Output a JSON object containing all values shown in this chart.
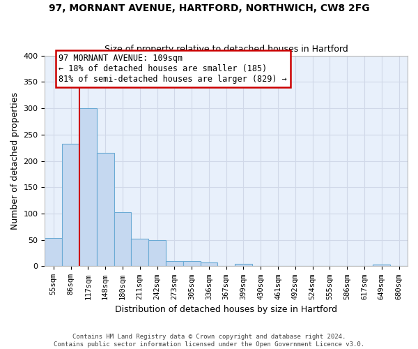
{
  "title_line1": "97, MORNANT AVENUE, HARTFORD, NORTHWICH, CW8 2FG",
  "title_line2": "Size of property relative to detached houses in Hartford",
  "xlabel": "Distribution of detached houses by size in Hartford",
  "ylabel": "Number of detached properties",
  "categories": [
    "55sqm",
    "86sqm",
    "117sqm",
    "148sqm",
    "180sqm",
    "211sqm",
    "242sqm",
    "273sqm",
    "305sqm",
    "336sqm",
    "367sqm",
    "399sqm",
    "430sqm",
    "461sqm",
    "492sqm",
    "524sqm",
    "555sqm",
    "586sqm",
    "617sqm",
    "649sqm",
    "680sqm"
  ],
  "values": [
    53,
    232,
    300,
    215,
    103,
    52,
    49,
    10,
    10,
    7,
    0,
    5,
    0,
    0,
    0,
    0,
    0,
    0,
    0,
    3,
    0
  ],
  "bar_color": "#c5d8f0",
  "bar_edge_color": "#6aaad4",
  "annotation_text_line1": "97 MORNANT AVENUE: 109sqm",
  "annotation_text_line2": "← 18% of detached houses are smaller (185)",
  "annotation_text_line3": "81% of semi-detached houses are larger (829) →",
  "annotation_box_color": "#ffffff",
  "annotation_box_edge_color": "#cc0000",
  "vline_color": "#cc0000",
  "ylim": [
    0,
    400
  ],
  "yticks": [
    0,
    50,
    100,
    150,
    200,
    250,
    300,
    350,
    400
  ],
  "background_color": "#e8f0fb",
  "grid_color": "#d0d8e8",
  "fig_bg_color": "#ffffff",
  "footer_line1": "Contains HM Land Registry data © Crown copyright and database right 2024.",
  "footer_line2": "Contains public sector information licensed under the Open Government Licence v3.0."
}
